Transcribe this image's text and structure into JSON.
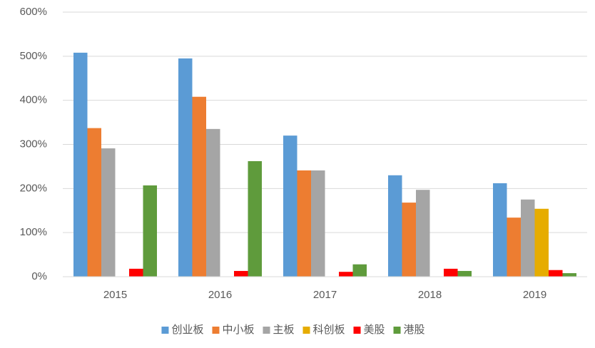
{
  "chart_data": {
    "type": "bar",
    "categories": [
      "2015",
      "2016",
      "2017",
      "2018",
      "2019"
    ],
    "series": [
      {
        "name": "创业板",
        "color": "#5b9bd5",
        "values": [
          508,
          495,
          320,
          230,
          212
        ]
      },
      {
        "name": "中小板",
        "color": "#ed7d31",
        "values": [
          337,
          408,
          241,
          168,
          134
        ]
      },
      {
        "name": "主板",
        "color": "#a5a5a5",
        "values": [
          291,
          335,
          241,
          197,
          175
        ]
      },
      {
        "name": "科创板",
        "color": "#e6ac00",
        "values": [
          null,
          null,
          null,
          null,
          154
        ]
      },
      {
        "name": "美股",
        "color": "#ff0000",
        "values": [
          18,
          13,
          11,
          18,
          15
        ]
      },
      {
        "name": "港股",
        "color": "#5f9b3c",
        "values": [
          207,
          262,
          28,
          13,
          8
        ]
      }
    ],
    "ylim": [
      0,
      600
    ],
    "yticks": [
      {
        "value": 0,
        "label": "0%"
      },
      {
        "value": 100,
        "label": "100%"
      },
      {
        "value": 200,
        "label": "200%"
      },
      {
        "value": 300,
        "label": "300%"
      },
      {
        "value": 400,
        "label": "400%"
      },
      {
        "value": 500,
        "label": "500%"
      },
      {
        "value": 600,
        "label": "600%"
      }
    ],
    "grid": true,
    "legend": "bottom"
  }
}
